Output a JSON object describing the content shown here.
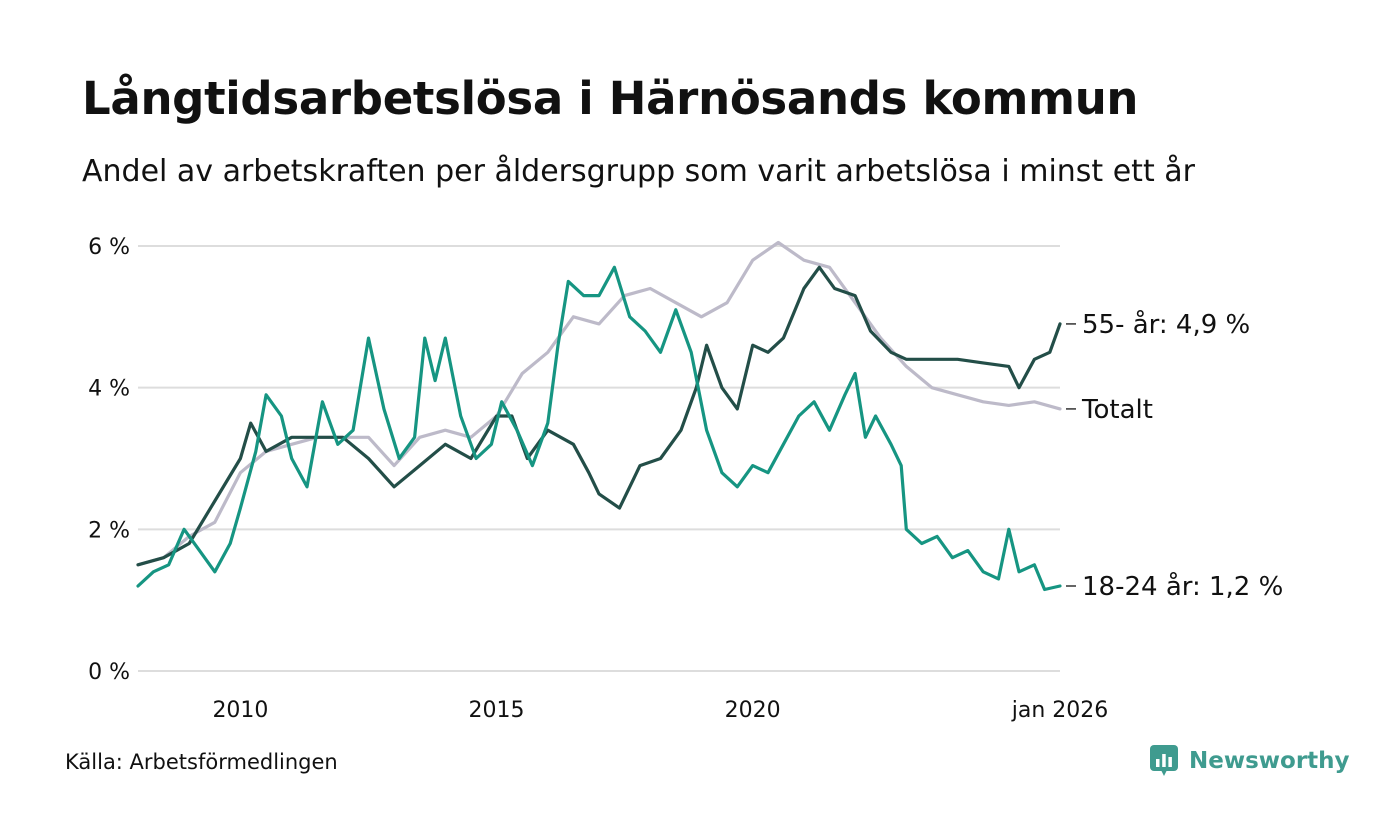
{
  "header": {
    "title": "Långtidsarbetslösa i Härnösands kommun",
    "subtitle": "Andel av arbetskraften per åldersgrupp som varit arbetslösa i minst ett år"
  },
  "footer": {
    "source": "Källa: Arbetsförmedlingen",
    "brand": "Newsworthy",
    "brand_color": "#3f9b8f"
  },
  "chart_data": {
    "type": "line",
    "title": "Långtidsarbetslösa i Härnösands kommun",
    "xlabel": "",
    "ylabel": "",
    "xlim": [
      2008.0,
      2026.0
    ],
    "ylim": [
      0,
      6
    ],
    "grid": true,
    "y_ticks": [
      {
        "value": 0,
        "label": "0 %"
      },
      {
        "value": 2,
        "label": "2 %"
      },
      {
        "value": 4,
        "label": "4 %"
      },
      {
        "value": 6,
        "label": "6 %"
      }
    ],
    "x_ticks": [
      {
        "value": 2010,
        "label": "2010"
      },
      {
        "value": 2015,
        "label": "2015"
      },
      {
        "value": 2020,
        "label": "2020"
      },
      {
        "value": 2026.0,
        "label": "jan 2026"
      }
    ],
    "series": [
      {
        "name": "Totalt",
        "label": "Totalt",
        "color": "#bdbac9",
        "end_value": 3.7,
        "points": [
          [
            2008.0,
            1.5
          ],
          [
            2008.5,
            1.6
          ],
          [
            2009.0,
            1.9
          ],
          [
            2009.5,
            2.1
          ],
          [
            2010.0,
            2.8
          ],
          [
            2010.5,
            3.1
          ],
          [
            2011.0,
            3.2
          ],
          [
            2011.5,
            3.3
          ],
          [
            2012.0,
            3.3
          ],
          [
            2012.5,
            3.3
          ],
          [
            2013.0,
            2.9
          ],
          [
            2013.5,
            3.3
          ],
          [
            2014.0,
            3.4
          ],
          [
            2014.5,
            3.3
          ],
          [
            2015.0,
            3.6
          ],
          [
            2015.5,
            4.2
          ],
          [
            2016.0,
            4.5
          ],
          [
            2016.5,
            5.0
          ],
          [
            2017.0,
            4.9
          ],
          [
            2017.5,
            5.3
          ],
          [
            2018.0,
            5.4
          ],
          [
            2018.5,
            5.2
          ],
          [
            2019.0,
            5.0
          ],
          [
            2019.5,
            5.2
          ],
          [
            2020.0,
            5.8
          ],
          [
            2020.5,
            6.05
          ],
          [
            2021.0,
            5.8
          ],
          [
            2021.5,
            5.7
          ],
          [
            2022.0,
            5.2
          ],
          [
            2022.5,
            4.7
          ],
          [
            2023.0,
            4.3
          ],
          [
            2023.5,
            4.0
          ],
          [
            2024.0,
            3.9
          ],
          [
            2024.5,
            3.8
          ],
          [
            2025.0,
            3.75
          ],
          [
            2025.5,
            3.8
          ],
          [
            2026.0,
            3.7
          ]
        ]
      },
      {
        "name": "55- år",
        "label": "55- år: 4,9 %",
        "color": "#234e48",
        "end_value": 4.9,
        "points": [
          [
            2008.0,
            1.5
          ],
          [
            2008.5,
            1.6
          ],
          [
            2009.0,
            1.8
          ],
          [
            2009.5,
            2.4
          ],
          [
            2010.0,
            3.0
          ],
          [
            2010.2,
            3.5
          ],
          [
            2010.5,
            3.1
          ],
          [
            2011.0,
            3.3
          ],
          [
            2011.5,
            3.3
          ],
          [
            2012.0,
            3.3
          ],
          [
            2012.5,
            3.0
          ],
          [
            2013.0,
            2.6
          ],
          [
            2013.5,
            2.9
          ],
          [
            2014.0,
            3.2
          ],
          [
            2014.5,
            3.0
          ],
          [
            2015.0,
            3.6
          ],
          [
            2015.3,
            3.6
          ],
          [
            2015.6,
            3.0
          ],
          [
            2016.0,
            3.4
          ],
          [
            2016.5,
            3.2
          ],
          [
            2016.8,
            2.8
          ],
          [
            2017.0,
            2.5
          ],
          [
            2017.4,
            2.3
          ],
          [
            2017.8,
            2.9
          ],
          [
            2018.2,
            3.0
          ],
          [
            2018.6,
            3.4
          ],
          [
            2018.9,
            4.0
          ],
          [
            2019.1,
            4.6
          ],
          [
            2019.4,
            4.0
          ],
          [
            2019.7,
            3.7
          ],
          [
            2020.0,
            4.6
          ],
          [
            2020.3,
            4.5
          ],
          [
            2020.6,
            4.7
          ],
          [
            2021.0,
            5.4
          ],
          [
            2021.3,
            5.7
          ],
          [
            2021.6,
            5.4
          ],
          [
            2022.0,
            5.3
          ],
          [
            2022.3,
            4.8
          ],
          [
            2022.7,
            4.5
          ],
          [
            2023.0,
            4.4
          ],
          [
            2023.5,
            4.4
          ],
          [
            2024.0,
            4.4
          ],
          [
            2024.5,
            4.35
          ],
          [
            2025.0,
            4.3
          ],
          [
            2025.2,
            4.0
          ],
          [
            2025.5,
            4.4
          ],
          [
            2025.8,
            4.5
          ],
          [
            2026.0,
            4.9
          ]
        ]
      },
      {
        "name": "18-24 år",
        "label": "18-24 år: 1,2 %",
        "color": "#169582",
        "end_value": 1.2,
        "points": [
          [
            2008.0,
            1.2
          ],
          [
            2008.3,
            1.4
          ],
          [
            2008.6,
            1.5
          ],
          [
            2008.9,
            2.0
          ],
          [
            2009.2,
            1.7
          ],
          [
            2009.5,
            1.4
          ],
          [
            2009.8,
            1.8
          ],
          [
            2010.0,
            2.3
          ],
          [
            2010.3,
            3.1
          ],
          [
            2010.5,
            3.9
          ],
          [
            2010.8,
            3.6
          ],
          [
            2011.0,
            3.0
          ],
          [
            2011.3,
            2.6
          ],
          [
            2011.6,
            3.8
          ],
          [
            2011.9,
            3.2
          ],
          [
            2012.2,
            3.4
          ],
          [
            2012.5,
            4.7
          ],
          [
            2012.8,
            3.7
          ],
          [
            2013.1,
            3.0
          ],
          [
            2013.4,
            3.3
          ],
          [
            2013.6,
            4.7
          ],
          [
            2013.8,
            4.1
          ],
          [
            2014.0,
            4.7
          ],
          [
            2014.3,
            3.6
          ],
          [
            2014.6,
            3.0
          ],
          [
            2014.9,
            3.2
          ],
          [
            2015.1,
            3.8
          ],
          [
            2015.4,
            3.4
          ],
          [
            2015.7,
            2.9
          ],
          [
            2016.0,
            3.5
          ],
          [
            2016.2,
            4.6
          ],
          [
            2016.4,
            5.5
          ],
          [
            2016.7,
            5.3
          ],
          [
            2017.0,
            5.3
          ],
          [
            2017.3,
            5.7
          ],
          [
            2017.6,
            5.0
          ],
          [
            2017.9,
            4.8
          ],
          [
            2018.2,
            4.5
          ],
          [
            2018.5,
            5.1
          ],
          [
            2018.8,
            4.5
          ],
          [
            2019.1,
            3.4
          ],
          [
            2019.4,
            2.8
          ],
          [
            2019.7,
            2.6
          ],
          [
            2020.0,
            2.9
          ],
          [
            2020.3,
            2.8
          ],
          [
            2020.6,
            3.2
          ],
          [
            2020.9,
            3.6
          ],
          [
            2021.2,
            3.8
          ],
          [
            2021.5,
            3.4
          ],
          [
            2021.8,
            3.9
          ],
          [
            2022.0,
            4.2
          ],
          [
            2022.2,
            3.3
          ],
          [
            2022.4,
            3.6
          ],
          [
            2022.7,
            3.2
          ],
          [
            2022.9,
            2.9
          ],
          [
            2023.0,
            2.0
          ],
          [
            2023.3,
            1.8
          ],
          [
            2023.6,
            1.9
          ],
          [
            2023.9,
            1.6
          ],
          [
            2024.2,
            1.7
          ],
          [
            2024.5,
            1.4
          ],
          [
            2024.8,
            1.3
          ],
          [
            2025.0,
            2.0
          ],
          [
            2025.2,
            1.4
          ],
          [
            2025.5,
            1.5
          ],
          [
            2025.7,
            1.15
          ],
          [
            2026.0,
            1.2
          ]
        ]
      }
    ]
  }
}
